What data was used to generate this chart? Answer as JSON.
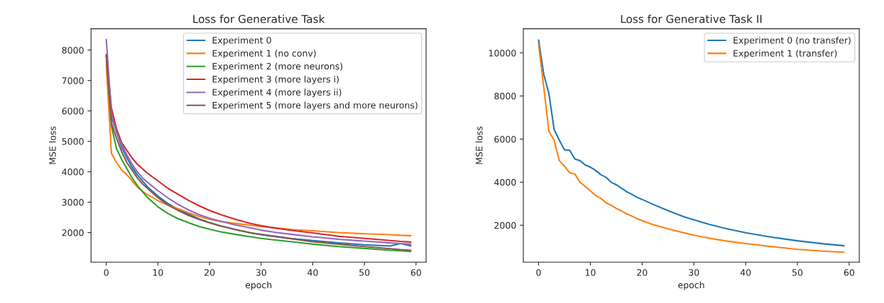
{
  "chart_data": [
    {
      "type": "line",
      "title": "Loss for Generative Task",
      "xlabel": "epoch",
      "ylabel": "MSE loss",
      "xlim": [
        -2.95,
        61.95
      ],
      "ylim": [
        1030,
        8700
      ],
      "xticks": [
        0,
        10,
        20,
        30,
        40,
        50,
        60
      ],
      "yticks": [
        2000,
        3000,
        4000,
        5000,
        6000,
        7000,
        8000
      ],
      "grid": false,
      "legend": "top right",
      "marker": "none",
      "line_style": "solid",
      "x": [
        0,
        1,
        2,
        3,
        4,
        5,
        6,
        7,
        8,
        10,
        12,
        14,
        16,
        18,
        20,
        22,
        25,
        28,
        30,
        33,
        36,
        40,
        45,
        50,
        55,
        57,
        59
      ],
      "series": [
        {
          "name": "Experiment 0",
          "color": "#1f77b4",
          "values": [
            7850,
            5800,
            5300,
            4800,
            4450,
            4150,
            3900,
            3700,
            3500,
            3200,
            2950,
            2750,
            2600,
            2450,
            2330,
            2230,
            2100,
            1990,
            1940,
            1870,
            1800,
            1740,
            1660,
            1600,
            1560,
            1640,
            1560
          ]
        },
        {
          "name": "Experiment 1 (no conv)",
          "color": "#ff7f0e",
          "values": [
            7500,
            4600,
            4300,
            4050,
            3900,
            3700,
            3500,
            3350,
            3250,
            3050,
            2900,
            2780,
            2650,
            2530,
            2440,
            2370,
            2300,
            2240,
            2200,
            2150,
            2100,
            2060,
            2000,
            1960,
            1930,
            1910,
            1900
          ]
        },
        {
          "name": "Experiment 2 (more neurons)",
          "color": "#2ca02c",
          "values": [
            7800,
            5500,
            4750,
            4400,
            4100,
            3800,
            3550,
            3350,
            3150,
            2850,
            2620,
            2450,
            2320,
            2200,
            2110,
            2030,
            1940,
            1860,
            1810,
            1750,
            1700,
            1620,
            1540,
            1480,
            1420,
            1400,
            1380
          ]
        },
        {
          "name": "Experiment 3 (more layers i)",
          "color": "#d62728",
          "values": [
            7800,
            6100,
            5400,
            4950,
            4700,
            4450,
            4250,
            4100,
            3950,
            3700,
            3450,
            3250,
            3050,
            2880,
            2730,
            2600,
            2440,
            2300,
            2230,
            2140,
            2070,
            1990,
            1880,
            1810,
            1740,
            1710,
            1690
          ]
        },
        {
          "name": "Experiment 4 (more layers ii)",
          "color": "#9467bd",
          "values": [
            8350,
            5900,
            5300,
            4900,
            4550,
            4250,
            4000,
            3800,
            3650,
            3380,
            3130,
            2920,
            2740,
            2590,
            2470,
            2380,
            2250,
            2150,
            2080,
            2000,
            1940,
            1860,
            1780,
            1720,
            1660,
            1640,
            1620
          ]
        },
        {
          "name": "Experiment 5 (more layers and more neurons)",
          "color": "#8c564b",
          "values": [
            7850,
            5600,
            5100,
            4650,
            4300,
            4050,
            3800,
            3600,
            3450,
            3150,
            2900,
            2720,
            2560,
            2430,
            2320,
            2220,
            2100,
            1990,
            1930,
            1860,
            1790,
            1700,
            1620,
            1540,
            1470,
            1440,
            1420
          ]
        }
      ]
    },
    {
      "type": "line",
      "title": "Loss for Generative Task II",
      "xlabel": "epoch",
      "ylabel": "MSE loss",
      "xlim": [
        -2.95,
        61.95
      ],
      "ylim": [
        290,
        11120
      ],
      "xticks": [
        0,
        10,
        20,
        30,
        40,
        50,
        60
      ],
      "yticks": [
        2000,
        4000,
        6000,
        8000,
        10000
      ],
      "grid": false,
      "legend": "top right",
      "marker": "none",
      "line_style": "solid",
      "x": [
        0,
        1,
        2,
        3,
        4,
        5,
        6,
        7,
        8,
        9,
        10,
        11,
        12,
        13,
        14,
        15,
        16,
        17,
        18,
        19,
        20,
        22,
        25,
        28,
        30,
        33,
        36,
        40,
        45,
        50,
        55,
        59
      ],
      "series": [
        {
          "name": "Experiment 0 (no transfer)",
          "color": "#1f77b4",
          "values": [
            10600,
            9000,
            8100,
            6450,
            5950,
            5500,
            5480,
            5080,
            5000,
            4800,
            4700,
            4550,
            4350,
            4230,
            4000,
            3880,
            3720,
            3560,
            3440,
            3300,
            3200,
            2980,
            2680,
            2400,
            2250,
            2040,
            1860,
            1650,
            1450,
            1280,
            1140,
            1050
          ]
        },
        {
          "name": "Experiment 1 (transfer)",
          "color": "#ff7f0e",
          "values": [
            10400,
            8400,
            6350,
            5950,
            5000,
            4750,
            4430,
            4380,
            4000,
            3800,
            3600,
            3380,
            3250,
            3050,
            2930,
            2780,
            2670,
            2530,
            2430,
            2310,
            2210,
            2040,
            1830,
            1650,
            1540,
            1400,
            1280,
            1150,
            1010,
            880,
            800,
            750
          ]
        }
      ]
    }
  ]
}
